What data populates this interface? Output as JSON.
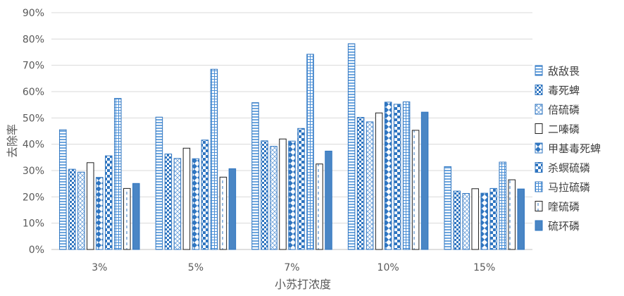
{
  "chart_data": {
    "type": "bar",
    "xlabel": "小苏打浓度",
    "ylabel": "去除率",
    "categories": [
      "3%",
      "5%",
      "7%",
      "10%",
      "15%"
    ],
    "ylim": [
      0,
      90
    ],
    "yticks": [
      "0%",
      "10%",
      "20%",
      "30%",
      "40%",
      "50%",
      "60%",
      "70%",
      "80%",
      "90%"
    ],
    "grid": true,
    "legend_position": "right",
    "series": [
      {
        "name": "敌敌畏",
        "values": [
          45.5,
          50.3,
          55.8,
          78.2,
          31.5
        ]
      },
      {
        "name": "毒死蜱",
        "values": [
          30.5,
          36.3,
          41.3,
          50.2,
          22.2
        ]
      },
      {
        "name": "倍硫磷",
        "values": [
          29.4,
          34.6,
          39.2,
          48.5,
          21.3
        ]
      },
      {
        "name": "二嗪磷",
        "values": [
          33.0,
          38.5,
          42.0,
          51.9,
          23.1
        ]
      },
      {
        "name": "甲基毒死蜱",
        "values": [
          27.4,
          34.5,
          41.2,
          56.0,
          21.4
        ]
      },
      {
        "name": "杀螟硫磷",
        "values": [
          35.6,
          41.6,
          46.0,
          55.2,
          23.2
        ]
      },
      {
        "name": "马拉硫磷",
        "values": [
          57.4,
          68.5,
          74.2,
          56.1,
          33.2
        ]
      },
      {
        "name": "喹硫磷",
        "values": [
          23.2,
          27.5,
          32.5,
          45.3,
          26.5
        ]
      },
      {
        "name": "硫环磷",
        "values": [
          25.1,
          30.7,
          37.4,
          52.2,
          23.0
        ]
      }
    ]
  }
}
